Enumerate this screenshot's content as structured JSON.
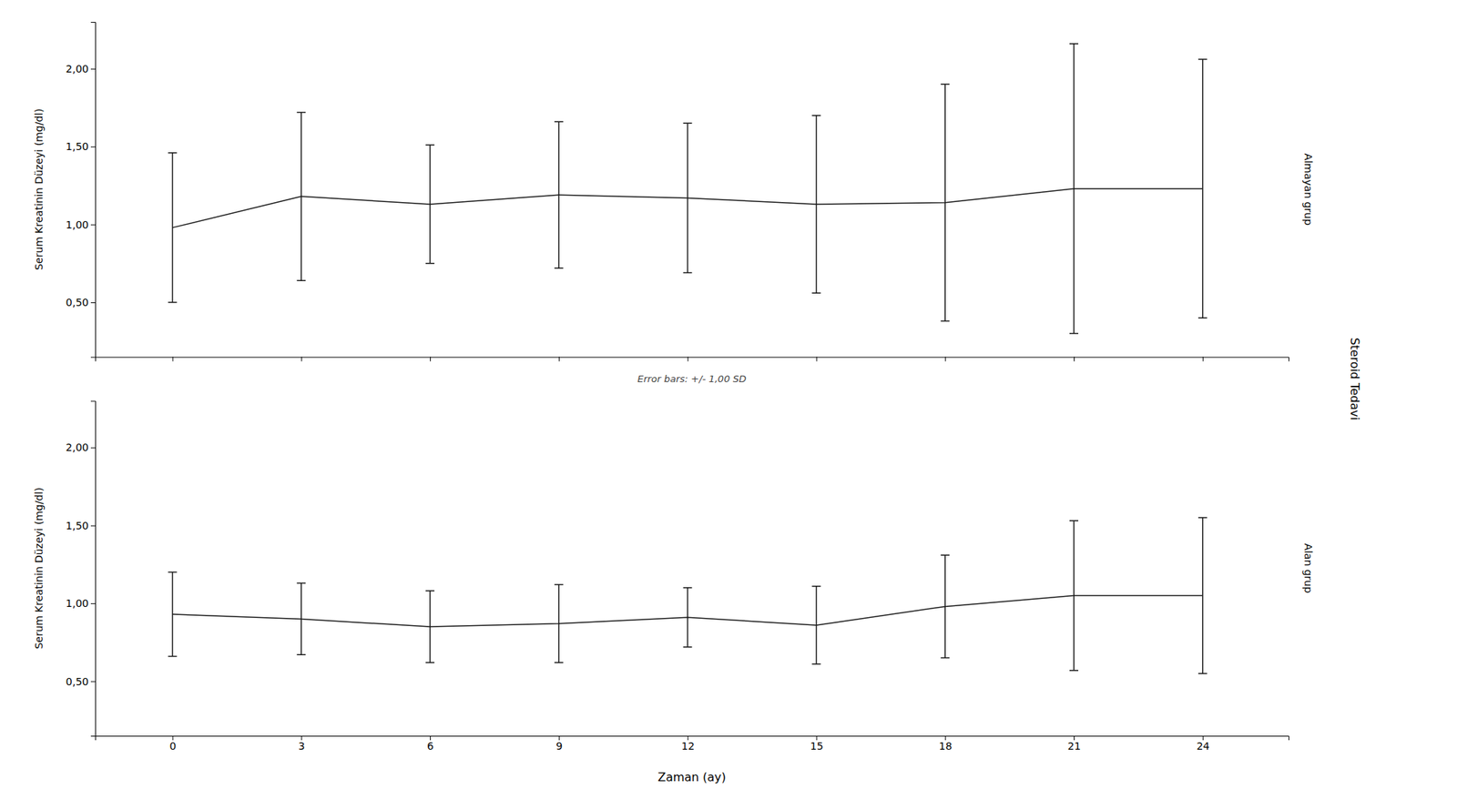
{
  "chart_data": [
    {
      "type": "line",
      "title": "Almayan grup",
      "ylabel": "Serum Kreatinin Düzeyi (mg/dl)",
      "annotations": [
        "Error bars: +/- 1,00 SD",
        "Steroid Tedavi"
      ],
      "x": [
        0,
        3,
        6,
        9,
        12,
        15,
        18,
        21,
        24
      ],
      "xlim": [
        -1.8,
        26.0
      ],
      "xticks": [
        0,
        3,
        6,
        9,
        12,
        15,
        18,
        21,
        24
      ],
      "ylim": [
        0.15,
        2.3
      ],
      "yticks": [
        {
          "value": 0.5,
          "label": "0,50"
        },
        {
          "value": 1.0,
          "label": "1,00"
        },
        {
          "value": 1.5,
          "label": "1,50"
        },
        {
          "value": 2.0,
          "label": "2,00"
        }
      ],
      "tick_labels": "y",
      "series": [
        {
          "color": "#1a1a1a",
          "values": [
            0.98,
            1.18,
            1.13,
            1.19,
            1.17,
            1.13,
            1.14,
            1.23,
            1.23
          ],
          "errors": [
            0.48,
            0.54,
            0.38,
            0.47,
            0.48,
            0.57,
            0.76,
            0.93,
            0.83
          ]
        }
      ]
    },
    {
      "type": "line",
      "title": "Alan grup",
      "ylabel": "Serum Kreatinin Düzeyi (mg/dl)",
      "xlabel": "Zaman (ay)",
      "x": [
        0,
        3,
        6,
        9,
        12,
        15,
        18,
        21,
        24
      ],
      "xlim": [
        -1.8,
        26.0
      ],
      "xticks": [
        0,
        3,
        6,
        9,
        12,
        15,
        18,
        21,
        24
      ],
      "ylim": [
        0.15,
        2.3
      ],
      "yticks": [
        {
          "value": 0.5,
          "label": "0,50"
        },
        {
          "value": 1.0,
          "label": "1,00"
        },
        {
          "value": 1.5,
          "label": "1,50"
        },
        {
          "value": 2.0,
          "label": "2,00"
        }
      ],
      "series": [
        {
          "color": "#1a1a1a",
          "values": [
            0.93,
            0.9,
            0.85,
            0.87,
            0.91,
            0.86,
            0.98,
            1.05,
            1.05
          ],
          "errors": [
            0.27,
            0.23,
            0.23,
            0.25,
            0.19,
            0.25,
            0.33,
            0.48,
            0.5
          ]
        }
      ]
    }
  ]
}
